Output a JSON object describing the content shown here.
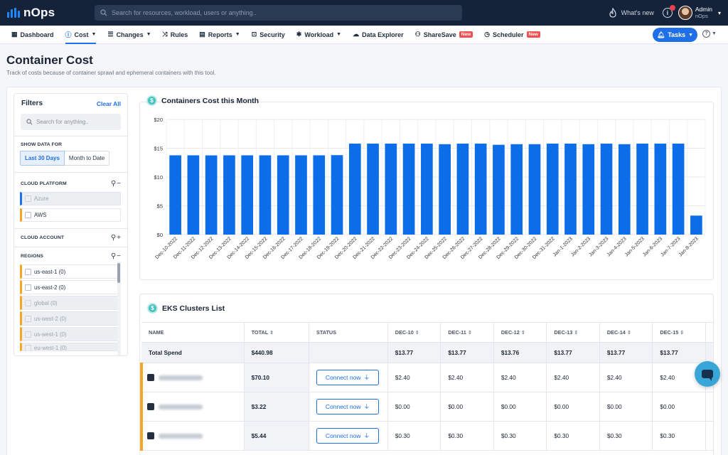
{
  "app": {
    "name": "nOps"
  },
  "search": {
    "placeholder": "Search for resources, workload, users or anything.."
  },
  "topbar": {
    "whats_new": "What's new",
    "user_name": "Admin",
    "user_org": "nOps"
  },
  "nav": {
    "items": [
      {
        "label": "Dashboard",
        "icon": "grid-icon",
        "caret": false
      },
      {
        "label": "Cost",
        "icon": "cost-icon",
        "caret": true,
        "active": true
      },
      {
        "label": "Changes",
        "icon": "list-icon",
        "caret": true
      },
      {
        "label": "Rules",
        "icon": "shuffle-icon",
        "caret": false
      },
      {
        "label": "Reports",
        "icon": "document-icon",
        "caret": true
      },
      {
        "label": "Security",
        "icon": "lock-icon",
        "caret": false
      },
      {
        "label": "Workload",
        "icon": "gear-icon",
        "caret": true
      },
      {
        "label": "Data Explorer",
        "icon": "cloud-icon",
        "caret": false
      },
      {
        "label": "ShareSave",
        "icon": "share-icon",
        "caret": false,
        "badge": "New"
      },
      {
        "label": "Scheduler",
        "icon": "clock-icon",
        "caret": false,
        "badge": "New"
      }
    ],
    "tasks_label": "Tasks"
  },
  "page": {
    "title": "Container Cost",
    "subtitle": "Track of costs because of container sprawl and ephemeral containers with this tool."
  },
  "filters": {
    "title": "Filters",
    "clear_all": "Clear All",
    "search_placeholder": "Search for anything..",
    "show_data_for": "SHOW DATA FOR",
    "range_options": [
      "Last 30 Days",
      "Month to Date"
    ],
    "cloud_platform_label": "CLOUD PLATFORM",
    "platforms": [
      {
        "label": "Azure",
        "color": "#1e6fe8",
        "disabled": true
      },
      {
        "label": "AWS",
        "color": "#f5a623",
        "disabled": false
      }
    ],
    "cloud_account_label": "CLOUD ACCOUNT",
    "regions_label": "REGIONS",
    "regions": [
      {
        "label": "us-east-1 (0)",
        "disabled": false
      },
      {
        "label": "us-east-2 (0)",
        "disabled": false
      },
      {
        "label": "global (0)",
        "disabled": true
      },
      {
        "label": "us-west-2 (0)",
        "disabled": true
      },
      {
        "label": "us-west-1 (0)",
        "disabled": true
      },
      {
        "label": "eu-west-1 (0)",
        "disabled": true
      }
    ]
  },
  "chart_card": {
    "title": "Containers Cost this Month"
  },
  "chart_data": {
    "type": "bar",
    "categories": [
      "Dec-10-2022",
      "Dec-11-2022",
      "Dec-12-2022",
      "Dec-13-2022",
      "Dec-14-2022",
      "Dec-15-2022",
      "Dec-16-2022",
      "Dec-17-2022",
      "Dec-18-2022",
      "Dec-19-2022",
      "Dec-20-2022",
      "Dec-21-2022",
      "Dec-22-2022",
      "Dec-23-2022",
      "Dec-24-2022",
      "Dec-25-2022",
      "Dec-26-2022",
      "Dec-27-2022",
      "Dec-28-2022",
      "Dec-29-2022",
      "Dec-30-2022",
      "Dec-31-2022",
      "Jan-1-2023",
      "Jan-2-2023",
      "Jan-3-2023",
      "Jan-4-2023",
      "Jan-5-2023",
      "Jan-6-2023",
      "Jan-7-2023",
      "Jan-8-2023"
    ],
    "values": [
      13.77,
      13.77,
      13.76,
      13.77,
      13.77,
      13.77,
      13.77,
      13.77,
      13.77,
      13.8,
      15.8,
      15.8,
      15.8,
      15.8,
      15.8,
      15.7,
      15.8,
      15.8,
      15.6,
      15.7,
      15.7,
      15.8,
      15.8,
      15.7,
      15.8,
      15.7,
      15.8,
      15.8,
      15.8,
      3.3
    ],
    "y_ticks": [
      "$0",
      "$5",
      "$10",
      "$15",
      "$20"
    ],
    "ylim": [
      0,
      20
    ],
    "bar_color": "#0b6ee8",
    "grid": true
  },
  "eks": {
    "title": "EKS Clusters List",
    "columns": [
      "NAME",
      "TOTAL",
      "STATUS",
      "DEC-10",
      "DEC-11",
      "DEC-12",
      "DEC-13",
      "DEC-14",
      "DEC-15"
    ],
    "total_row": {
      "name": "Total Spend",
      "total": "$440.98",
      "days": [
        "$13.77",
        "$13.77",
        "$13.76",
        "$13.77",
        "$13.77",
        "$13.77"
      ]
    },
    "rows": [
      {
        "total": "$70.10",
        "status": "Connect now",
        "days": [
          "$2.40",
          "$2.40",
          "$2.40",
          "$2.40",
          "$2.40",
          "$2.40"
        ]
      },
      {
        "total": "$3.22",
        "status": "Connect now",
        "days": [
          "$0.00",
          "$0.00",
          "$0.00",
          "$0.00",
          "$0.00",
          "$0.00"
        ]
      },
      {
        "total": "$5.44",
        "status": "Connect now",
        "days": [
          "$0.30",
          "$0.30",
          "$0.30",
          "$0.30",
          "$0.30",
          "$0.30"
        ]
      }
    ]
  }
}
